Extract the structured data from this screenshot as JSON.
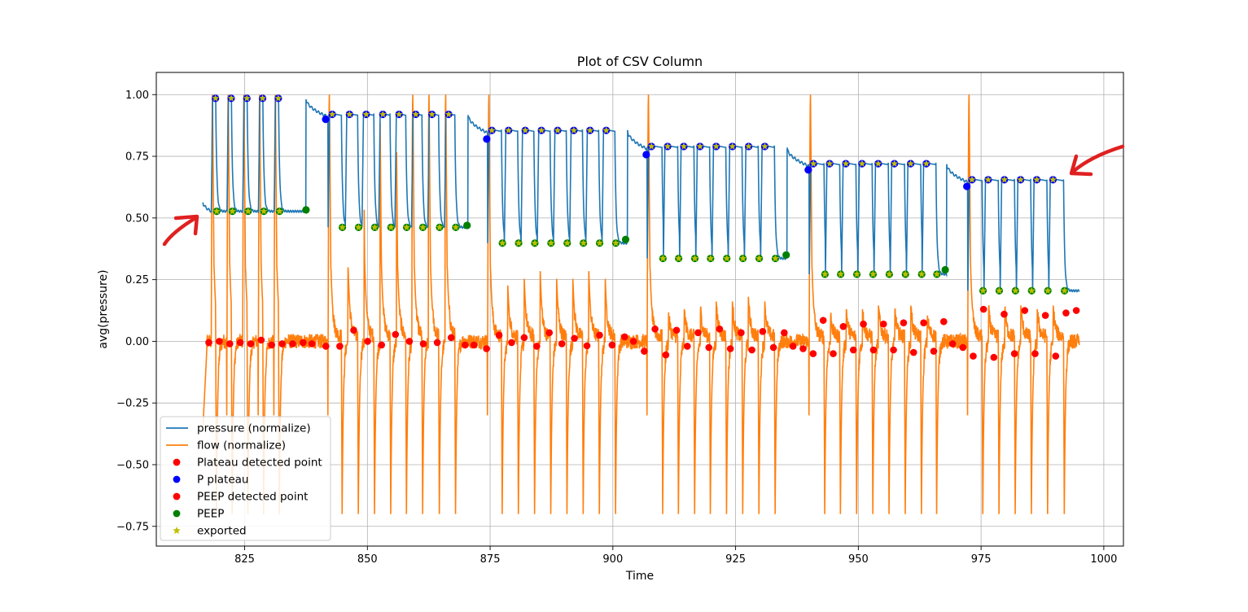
{
  "chart_data": {
    "type": "line",
    "title": "Plot of CSV Column",
    "xlabel": "Time",
    "ylabel": "avg(pressure)",
    "xlim": [
      807,
      1004
    ],
    "ylim": [
      -0.83,
      1.09
    ],
    "xticks": [
      825,
      850,
      875,
      900,
      925,
      950,
      975,
      1000
    ],
    "yticks": [
      -0.75,
      -0.5,
      -0.25,
      0.0,
      0.25,
      0.5,
      0.75,
      1.0
    ],
    "xtick_labels": [
      "825",
      "850",
      "875",
      "900",
      "925",
      "950",
      "975",
      "1000"
    ],
    "ytick_labels": [
      "−0.75",
      "−0.50",
      "−0.25",
      "0.00",
      "0.25",
      "0.50",
      "0.75",
      "1.00"
    ],
    "grid": true,
    "legend_position": "lower-left",
    "colors": {
      "pressure": "#1f77b4",
      "flow": "#ff7f0e",
      "plateau_detected": "#ff0000",
      "p_plateau": "#0000ff",
      "peep_detected": "#ff0000",
      "peep": "#008000",
      "exported": "#bfbf00",
      "annotation_arrow": "#e02020"
    },
    "x_range": [
      816.5,
      995
    ],
    "blocks": [
      {
        "start": 816.5,
        "end": 837.5,
        "high": 0.985,
        "low": 0.527,
        "breaths": [
          [
            818.2,
            819.1
          ],
          [
            821.4,
            822.3
          ],
          [
            824.6,
            825.5
          ],
          [
            827.8,
            828.7
          ],
          [
            831.0,
            831.9
          ]
        ],
        "plateau_y": [
          -0.005,
          0.0,
          -0.01,
          -0.005,
          -0.01,
          0.005,
          -0.015,
          -0.01,
          -0.01,
          -0.005
        ],
        "p_plateau": null,
        "peep_point": [
          837.5,
          0.533
        ]
      },
      {
        "start": 837.5,
        "end": 870.5,
        "high": 0.92,
        "low": 0.462,
        "breaths": [
          [
            842.0,
            844.7
          ],
          [
            845.5,
            848.0
          ],
          [
            848.9,
            851.3
          ],
          [
            852.3,
            854.6
          ],
          [
            855.6,
            857.8
          ],
          [
            859.0,
            861.1
          ],
          [
            862.3,
            864.5
          ],
          [
            865.7,
            867.8
          ]
        ],
        "plateau_y": [
          -0.01,
          -0.02,
          -0.02,
          0.045,
          0.0,
          -0.015,
          0.028,
          0.0,
          -0.01,
          -0.005,
          0.015,
          -0.015
        ],
        "p_plateau": [
          841.5,
          0.9
        ],
        "peep_point": [
          870.3,
          0.47
        ]
      },
      {
        "start": 870.5,
        "end": 903,
        "high": 0.855,
        "low": 0.398,
        "breaths": [
          [
            874.5,
            877.3
          ],
          [
            877.9,
            880.6
          ],
          [
            881.3,
            883.9
          ],
          [
            884.6,
            887.2
          ],
          [
            887.9,
            890.5
          ],
          [
            891.2,
            893.8
          ],
          [
            894.5,
            897.1
          ],
          [
            897.8,
            900.4
          ]
        ],
        "plateau_y": [
          -0.015,
          -0.03,
          0.025,
          -0.005,
          0.015,
          -0.02,
          0.035,
          -0.01,
          0.012,
          -0.018,
          0.025,
          -0.015,
          0.018
        ],
        "p_plateau": [
          874.3,
          0.82
        ],
        "peep_point": [
          902.6,
          0.413
        ]
      },
      {
        "start": 903,
        "end": 935.5,
        "high": 0.79,
        "low": 0.336,
        "breaths": [
          [
            907.0,
            910.0
          ],
          [
            910.3,
            913.2
          ],
          [
            913.6,
            916.5
          ],
          [
            916.9,
            919.7
          ],
          [
            920.2,
            923.0
          ],
          [
            923.5,
            926.3
          ],
          [
            926.8,
            929.6
          ],
          [
            930.1,
            932.9
          ]
        ],
        "plateau_y": [
          0.0,
          -0.04,
          0.05,
          -0.055,
          0.045,
          -0.02,
          0.035,
          -0.025,
          0.05,
          -0.03,
          0.035,
          -0.035,
          0.04,
          -0.025,
          0.035
        ],
        "p_plateau": [
          906.8,
          0.757
        ],
        "peep_point": [
          935.3,
          0.35
        ]
      },
      {
        "start": 935.5,
        "end": 968,
        "high": 0.72,
        "low": 0.272,
        "breaths": [
          [
            940.0,
            943.0
          ],
          [
            943.3,
            946.2
          ],
          [
            946.6,
            949.5
          ],
          [
            949.9,
            952.8
          ],
          [
            953.2,
            956.1
          ],
          [
            956.5,
            959.4
          ],
          [
            959.8,
            962.7
          ],
          [
            963.0,
            965.8
          ]
        ],
        "plateau_y": [
          -0.02,
          -0.03,
          -0.05,
          0.085,
          -0.05,
          0.06,
          -0.035,
          0.07,
          -0.035,
          0.07,
          -0.035,
          0.075,
          -0.045,
          0.075,
          -0.04,
          0.08
        ],
        "p_plateau": [
          939.8,
          0.695
        ],
        "peep_point": [
          967.7,
          0.29
        ]
      },
      {
        "start": 968,
        "end": 995,
        "high": 0.655,
        "low": 0.205,
        "breaths": [
          [
            972.3,
            975.2
          ],
          [
            975.6,
            978.5
          ],
          [
            978.9,
            981.8
          ],
          [
            982.2,
            985.1
          ],
          [
            985.5,
            988.4
          ],
          [
            988.8,
            991.8
          ]
        ],
        "plateau_y": [
          -0.01,
          -0.025,
          -0.06,
          0.13,
          -0.065,
          0.11,
          -0.05,
          0.125,
          -0.05,
          0.105,
          -0.06,
          0.115,
          0.125
        ],
        "p_plateau": [
          972.1,
          0.628
        ],
        "peep_point": null
      }
    ],
    "series": [
      {
        "name": "pressure (normalize)",
        "type": "line"
      },
      {
        "name": "flow (normalize)",
        "type": "line"
      },
      {
        "name": "Plateau detected point",
        "type": "scatter"
      },
      {
        "name": "P plateau",
        "type": "scatter"
      },
      {
        "name": "PEEP detected point",
        "type": "scatter"
      },
      {
        "name": "PEEP",
        "type": "scatter"
      },
      {
        "name": "exported",
        "type": "scatter"
      }
    ],
    "legend": [
      {
        "label": "pressure (normalize)",
        "kind": "line",
        "color_key": "pressure"
      },
      {
        "label": "flow (normalize)",
        "kind": "line",
        "color_key": "flow"
      },
      {
        "label": "Plateau detected point",
        "kind": "dot",
        "color_key": "plateau_detected"
      },
      {
        "label": "P plateau",
        "kind": "dot",
        "color_key": "p_plateau"
      },
      {
        "label": "PEEP detected point",
        "kind": "dot",
        "color_key": "peep_detected"
      },
      {
        "label": "PEEP",
        "kind": "dot",
        "color_key": "peep"
      },
      {
        "label": "exported",
        "kind": "star",
        "color_key": "exported"
      }
    ]
  }
}
